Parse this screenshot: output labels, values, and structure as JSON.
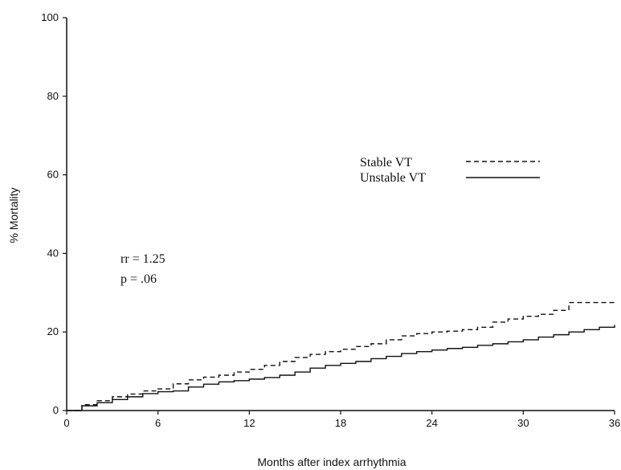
{
  "chart_data": {
    "type": "line",
    "title": "",
    "xlabel": "Months after index arrhythmia",
    "ylabel": "% Mortality",
    "xlim": [
      0,
      36
    ],
    "ylim": [
      0,
      100
    ],
    "x_ticks": [
      0,
      6,
      12,
      18,
      24,
      30,
      36
    ],
    "y_ticks": [
      0,
      20,
      40,
      60,
      80,
      100
    ],
    "grid": false,
    "legend_position": "right",
    "annotations": [
      "rr = 1.25",
      "p = .06"
    ],
    "series": [
      {
        "name": "Stable VT",
        "style": "dashed",
        "color": "#111111",
        "x": [
          0,
          1,
          2,
          3,
          4,
          5,
          6,
          7,
          8,
          9,
          10,
          11,
          12,
          13,
          14,
          15,
          16,
          17,
          18,
          19,
          20,
          21,
          22,
          23,
          24,
          25,
          26,
          27,
          28,
          29,
          30,
          31,
          32,
          33,
          33,
          34,
          35,
          36
        ],
        "y": [
          0,
          1.5,
          2.5,
          3.5,
          4.2,
          5.0,
          5.5,
          6.8,
          7.8,
          8.5,
          9.0,
          9.8,
          10.5,
          11.5,
          12.5,
          13.5,
          14.3,
          15.0,
          15.6,
          16.3,
          17.0,
          18.0,
          19.0,
          19.6,
          20.0,
          20.2,
          20.6,
          21.2,
          22.5,
          23.3,
          24.0,
          24.5,
          25.5,
          26.5,
          27.5,
          27.5,
          27.5,
          27.5
        ]
      },
      {
        "name": "Unstable VT",
        "style": "solid",
        "color": "#111111",
        "x": [
          0,
          1,
          2,
          3,
          4,
          5,
          6,
          7,
          8,
          9,
          10,
          11,
          12,
          13,
          14,
          15,
          16,
          17,
          18,
          19,
          20,
          21,
          22,
          23,
          24,
          25,
          26,
          27,
          28,
          29,
          30,
          31,
          32,
          33,
          34,
          35,
          36
        ],
        "y": [
          0,
          1.2,
          2.0,
          2.8,
          3.5,
          4.3,
          4.8,
          5.0,
          6.0,
          6.7,
          7.3,
          7.6,
          8.0,
          8.4,
          9.0,
          9.8,
          10.8,
          11.5,
          12.0,
          12.5,
          13.2,
          13.8,
          14.5,
          15.0,
          15.4,
          15.8,
          16.1,
          16.6,
          17.0,
          17.5,
          18.0,
          18.7,
          19.3,
          20.0,
          20.6,
          21.2,
          21.8
        ]
      }
    ]
  }
}
